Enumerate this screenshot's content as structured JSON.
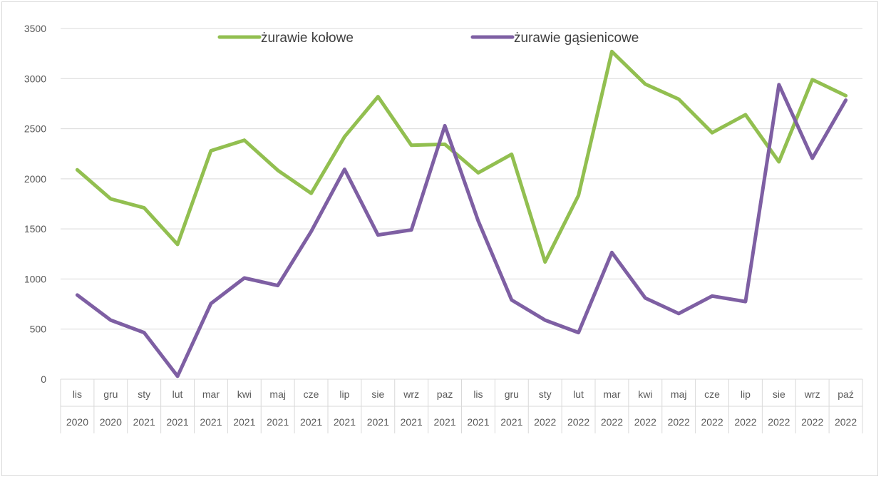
{
  "chart_data": {
    "type": "line",
    "title": "",
    "xlabel": "",
    "ylabel": "",
    "ylim": [
      0,
      3500
    ],
    "yticks": [
      0,
      500,
      1000,
      1500,
      2000,
      2500,
      3000,
      3500
    ],
    "grid": true,
    "legend_position": "top",
    "categories": [
      {
        "month": "lis",
        "year": "2020"
      },
      {
        "month": "gru",
        "year": "2020"
      },
      {
        "month": "sty",
        "year": "2021"
      },
      {
        "month": "lut",
        "year": "2021"
      },
      {
        "month": "mar",
        "year": "2021"
      },
      {
        "month": "kwi",
        "year": "2021"
      },
      {
        "month": "maj",
        "year": "2021"
      },
      {
        "month": "cze",
        "year": "2021"
      },
      {
        "month": "lip",
        "year": "2021"
      },
      {
        "month": "sie",
        "year": "2021"
      },
      {
        "month": "wrz",
        "year": "2021"
      },
      {
        "month": "paz",
        "year": "2021"
      },
      {
        "month": "lis",
        "year": "2021"
      },
      {
        "month": "gru",
        "year": "2021"
      },
      {
        "month": "sty",
        "year": "2022"
      },
      {
        "month": "lut",
        "year": "2022"
      },
      {
        "month": "mar",
        "year": "2022"
      },
      {
        "month": "kwi",
        "year": "2022"
      },
      {
        "month": "maj",
        "year": "2022"
      },
      {
        "month": "cze",
        "year": "2022"
      },
      {
        "month": "lip",
        "year": "2022"
      },
      {
        "month": "sie",
        "year": "2022"
      },
      {
        "month": "wrz",
        "year": "2022"
      },
      {
        "month": "paź",
        "year": "2022"
      }
    ],
    "series": [
      {
        "name": "żurawie kołowe",
        "color": "#92bf50",
        "values": [
          2090,
          1800,
          1710,
          1345,
          2280,
          2385,
          2085,
          1855,
          2420,
          2820,
          2335,
          2345,
          2060,
          2245,
          1170,
          1835,
          3270,
          2945,
          2795,
          2460,
          2640,
          2170,
          2990,
          2830
        ]
      },
      {
        "name": "żurawie gąsienicowe",
        "color": "#7e5fa3",
        "values": [
          840,
          590,
          465,
          30,
          755,
          1010,
          935,
          1475,
          2095,
          1440,
          1490,
          2530,
          1580,
          790,
          590,
          465,
          1265,
          810,
          655,
          830,
          775,
          2940,
          2205,
          2785
        ]
      }
    ]
  }
}
